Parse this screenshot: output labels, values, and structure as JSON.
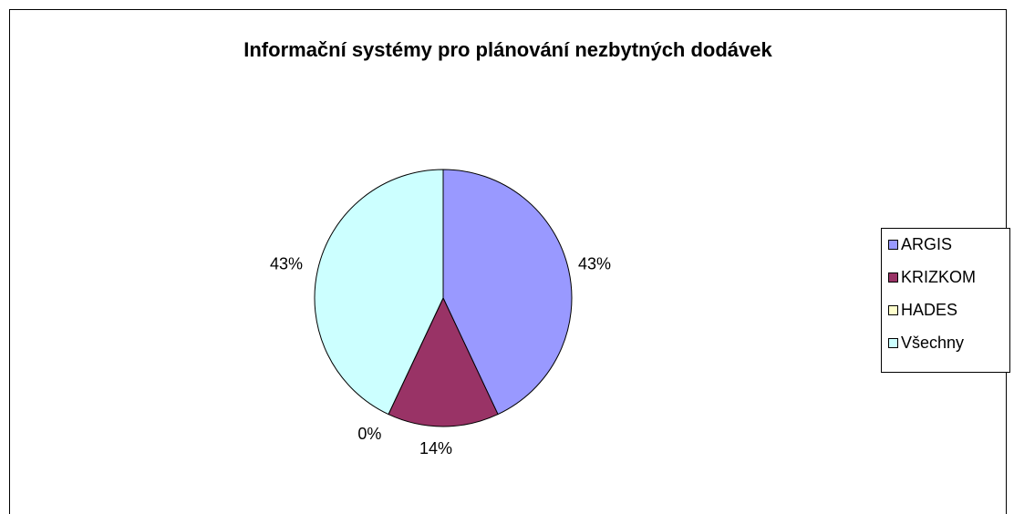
{
  "chart_data": {
    "type": "pie",
    "title": "Informační systémy pro plánování nezbytných dodávek",
    "categories": [
      "ARGIS",
      "KRIZKOM",
      "HADES",
      "Všechny"
    ],
    "values": [
      43,
      14,
      0,
      43
    ],
    "value_labels": [
      "43%",
      "14%",
      "0%",
      "43%"
    ],
    "colors": [
      "#9999ff",
      "#993366",
      "#ffffcc",
      "#ccffff"
    ],
    "legend": "right"
  }
}
